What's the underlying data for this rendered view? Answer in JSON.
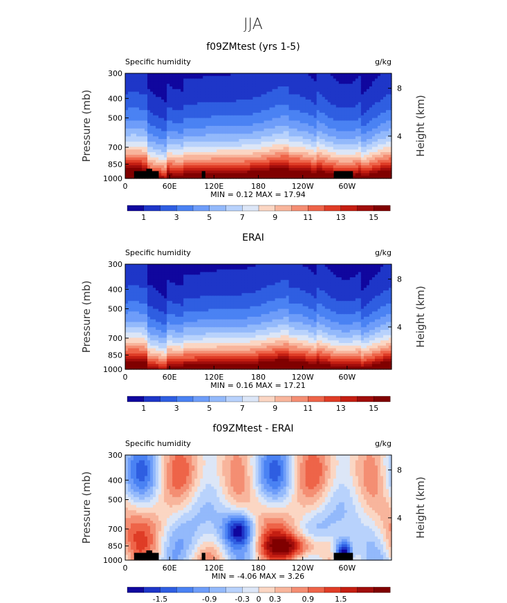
{
  "figure_title": "JJA",
  "colors": {
    "ramp": [
      "#10079e",
      "#1e36c8",
      "#2f5ee1",
      "#4a82f3",
      "#6e9df9",
      "#93b9fb",
      "#b8d2fc",
      "#dce6f7",
      "#fbd6c3",
      "#f8b59c",
      "#f48e73",
      "#ee6449",
      "#df3c26",
      "#c41e12",
      "#a00d0b",
      "#800000"
    ]
  },
  "chart_data": [
    {
      "type": "heatmap",
      "title": "f09ZMtest (yrs 1-5)",
      "field_label": "Specific humidity",
      "units": "g/kg",
      "ylabel": "Pressure (mb)",
      "ylabel_right": "Height (km)",
      "xticks": [
        "0",
        "60E",
        "120E",
        "180",
        "120W",
        "60W"
      ],
      "yticks": [
        "300",
        "400",
        "500",
        "700",
        "850",
        "1000"
      ],
      "yticks_right": [
        "8",
        "4"
      ],
      "ylim": [
        1000,
        300
      ],
      "xlim": [
        0,
        360
      ],
      "log_pressure": true,
      "stats": "MIN =    0.12   MAX =   17.94",
      "colorbar_labels": [
        "1",
        "3",
        "5",
        "7",
        "9",
        "11",
        "13",
        "15"
      ]
    },
    {
      "type": "heatmap",
      "title": "ERAI",
      "field_label": "Specific humidity",
      "units": "g/kg",
      "ylabel": "Pressure (mb)",
      "ylabel_right": "Height (km)",
      "xticks": [
        "0",
        "60E",
        "120E",
        "180",
        "120W",
        "60W"
      ],
      "yticks": [
        "300",
        "400",
        "500",
        "700",
        "850",
        "1000"
      ],
      "yticks_right": [
        "8",
        "4"
      ],
      "ylim": [
        1000,
        300
      ],
      "xlim": [
        0,
        360
      ],
      "log_pressure": true,
      "stats": "MIN =    0.16   MAX =   17.21",
      "colorbar_labels": [
        "1",
        "3",
        "5",
        "7",
        "9",
        "11",
        "13",
        "15"
      ]
    },
    {
      "type": "heatmap",
      "title": "f09ZMtest - ERAI",
      "field_label": "Specific humidity",
      "units": "g/kg",
      "ylabel": "Pressure (mb)",
      "ylabel_right": "Height (km)",
      "xticks": [
        "0",
        "60E",
        "120E",
        "180",
        "120W",
        "60W"
      ],
      "yticks": [
        "300",
        "400",
        "500",
        "700",
        "850",
        "1000"
      ],
      "yticks_right": [
        "8",
        "4"
      ],
      "ylim": [
        1000,
        300
      ],
      "xlim": [
        0,
        360
      ],
      "log_pressure": true,
      "stats": "MIN =   -4.06   MAX =    3.26",
      "colorbar_labels": [
        "-1.5",
        "-0.9",
        "-0.3",
        "0",
        "0.3",
        "0.9",
        "1.5"
      ]
    }
  ]
}
